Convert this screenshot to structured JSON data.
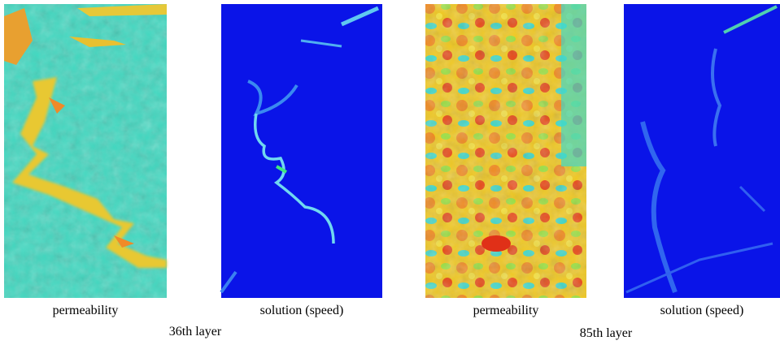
{
  "figure": {
    "groups": [
      {
        "panels": [
          {
            "caption": "permeability"
          },
          {
            "caption": "solution (speed)"
          }
        ],
        "label": "36th layer"
      },
      {
        "panels": [
          {
            "caption": "permeability"
          },
          {
            "caption": "solution (speed)"
          }
        ],
        "label": "85th layer"
      }
    ]
  }
}
